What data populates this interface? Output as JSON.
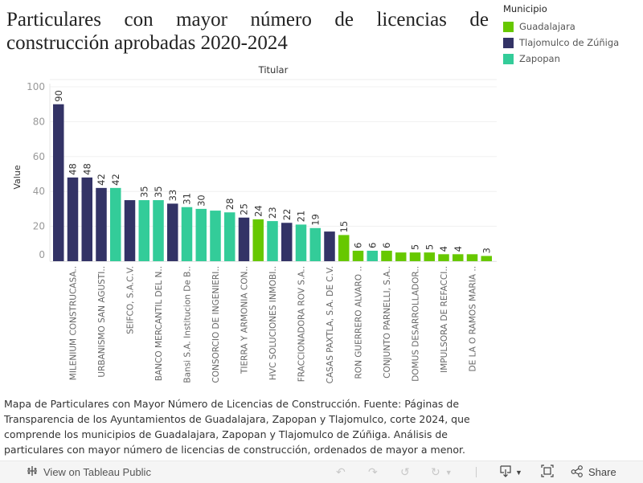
{
  "title": "Particulares con mayor número de licencias de construcción aprobadas 2020-2024",
  "legend": {
    "title": "Municipio",
    "items": [
      {
        "label": "Guadalajara",
        "color": "#67C800"
      },
      {
        "label": "Tlajomulco de Zúñiga",
        "color": "#333366"
      },
      {
        "label": "Zapopan",
        "color": "#33CC99"
      }
    ]
  },
  "caption": "Mapa de Particulares con Mayor Número de Licencias de Construcción. Fuente: Páginas de Transparencia de los Ayuntamientos de Guadalajara, Zapopan y Tlajomulco, corte 2024, que comprende los municipios de Guadalajara, Zapopan y Tlajomulco de Zúñiga. Análisis de particulares con mayor número de licencias de construcción, ordenados de mayor a menor.",
  "toolbar": {
    "view_on_tableau": "View on Tableau Public",
    "share": "Share"
  },
  "chart_data": {
    "type": "bar",
    "title": "Particulares con mayor número de licencias de construcción aprobadas 2020-2024",
    "header": "Titular",
    "xlabel": "",
    "ylabel": "Value",
    "ylim": [
      0,
      100
    ],
    "yticks": [
      0,
      20,
      40,
      60,
      80,
      100
    ],
    "grid": true,
    "legend_position": "top-right",
    "colors": {
      "Guadalajara": "#67C800",
      "Tlajomulco de Zúñiga": "#333366",
      "Zapopan": "#33CC99"
    },
    "values": [
      90,
      48,
      48,
      42,
      42,
      35,
      35,
      35,
      33,
      31,
      30,
      29,
      28,
      25,
      24,
      23,
      22,
      21,
      19,
      17,
      15,
      6,
      6,
      6,
      5,
      5,
      5,
      4,
      4,
      4,
      3
    ],
    "municipio": [
      "Tlajomulco de Zúñiga",
      "Tlajomulco de Zúñiga",
      "Tlajomulco de Zúñiga",
      "Tlajomulco de Zúñiga",
      "Zapopan",
      "Tlajomulco de Zúñiga",
      "Zapopan",
      "Zapopan",
      "Tlajomulco de Zúñiga",
      "Zapopan",
      "Zapopan",
      "Zapopan",
      "Zapopan",
      "Tlajomulco de Zúñiga",
      "Guadalajara",
      "Zapopan",
      "Tlajomulco de Zúñiga",
      "Zapopan",
      "Zapopan",
      "Tlajomulco de Zúñiga",
      "Guadalajara",
      "Guadalajara",
      "Zapopan",
      "Guadalajara",
      "Guadalajara",
      "Guadalajara",
      "Guadalajara",
      "Guadalajara",
      "Guadalajara",
      "Guadalajara",
      "Guadalajara"
    ],
    "value_labels": [
      "90",
      "48",
      "48",
      "42",
      "42",
      "",
      "35",
      "35",
      "33",
      "31",
      "30",
      "",
      "28",
      "25",
      "24",
      "23",
      "22",
      "21",
      "19",
      "",
      "15",
      "6",
      "6",
      "6",
      "",
      "5",
      "5",
      "4",
      "4",
      "",
      "3"
    ],
    "categories": [
      "",
      "MILENIUM CONSTRUCASA..",
      "",
      "URBANISMO SAN AGUSTI..",
      "",
      "SEIFCO, S.A.C.V.",
      "",
      "BANCO MERCANTIL DEL N..",
      "",
      "Bansi S.A. Institucion De B..",
      "",
      "CONSORCIO DE INGENIERI..",
      "",
      "TIERRA Y ARMONIA CON..",
      "",
      "HVC SOLUCIONES INMOBI..",
      "",
      "FRACCIONADORA ROV S.A..",
      "",
      "CASAS PAXTLA, S.A. DE C.V.",
      "",
      "RON GUERRERO ALVARO ..",
      "",
      "CONJUNTO PARNELLI, S.A..",
      "",
      "DOMUS DESARROLLADOR..",
      "",
      "IMPULSORA DE REFACCI..",
      "",
      "DE LA O RAMOS MARIA ..",
      ""
    ]
  }
}
